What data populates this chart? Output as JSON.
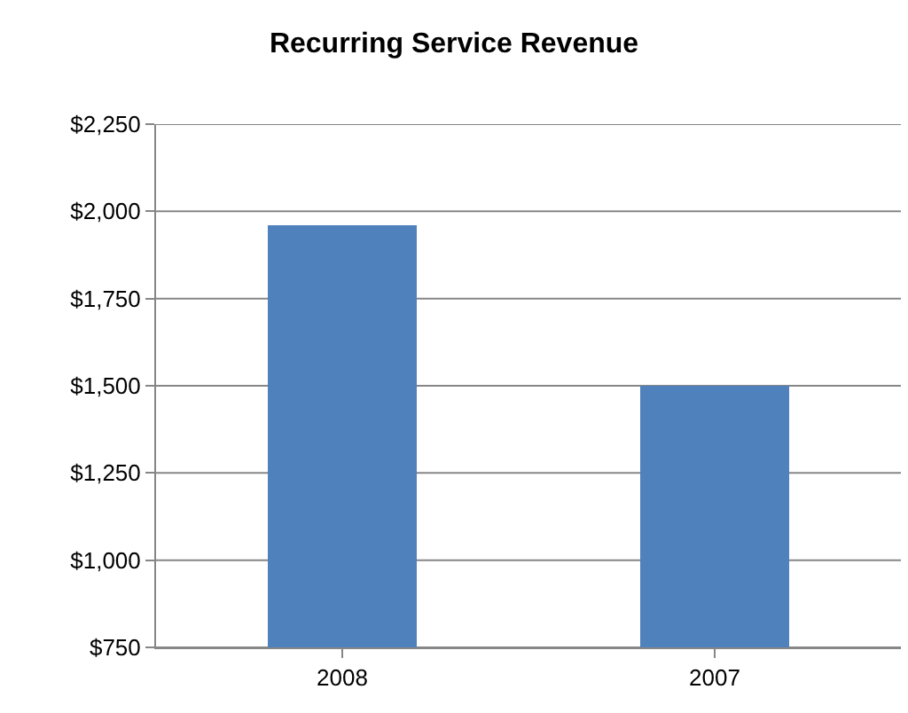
{
  "chart_data": {
    "type": "bar",
    "title": "Recurring Service Revenue",
    "categories": [
      "2008",
      "2007"
    ],
    "values": [
      1960,
      1500
    ],
    "color": "#4f81bd",
    "ylim": [
      750,
      2250
    ],
    "yticks": [
      {
        "value": 750,
        "label": "$750"
      },
      {
        "value": 1000,
        "label": "$1,000"
      },
      {
        "value": 1250,
        "label": "$1,250"
      },
      {
        "value": 1500,
        "label": "$1,500"
      },
      {
        "value": 1750,
        "label": "$1,750"
      },
      {
        "value": 2000,
        "label": "$2,000"
      },
      {
        "value": 2250,
        "label": "$2,250"
      }
    ],
    "grid": "y"
  }
}
